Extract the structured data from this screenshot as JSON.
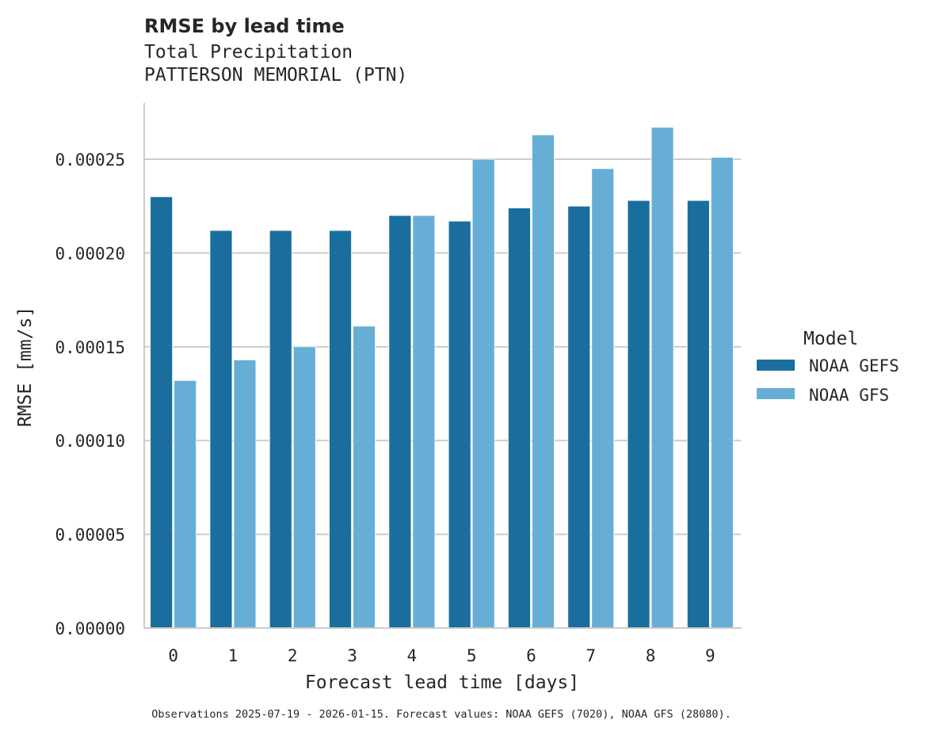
{
  "chart_data": {
    "type": "bar",
    "title": "RMSE by lead time",
    "subtitle_lines": [
      "Total Precipitation",
      "PATTERSON MEMORIAL (PTN)"
    ],
    "xlabel": "Forecast lead time [days]",
    "ylabel": "RMSE [mm/s]",
    "categories": [
      "0",
      "1",
      "2",
      "3",
      "4",
      "5",
      "6",
      "7",
      "8",
      "9"
    ],
    "ylim": [
      0,
      0.00028
    ],
    "yticks": [
      0,
      5e-05,
      0.0001,
      0.00015,
      0.0002,
      0.00025
    ],
    "ytick_labels": [
      "0.00000",
      "0.00005",
      "0.00010",
      "0.00015",
      "0.00020",
      "0.00025"
    ],
    "grid": "horizontal",
    "legend": {
      "title": "Model",
      "placement": "right"
    },
    "series": [
      {
        "name": "NOAA GEFS",
        "color": "#1a6e9e",
        "values": [
          0.00023,
          0.000212,
          0.000212,
          0.000212,
          0.00022,
          0.000217,
          0.000224,
          0.000225,
          0.000228,
          0.000228
        ]
      },
      {
        "name": "NOAA GFS",
        "color": "#67aed6",
        "values": [
          0.000132,
          0.000143,
          0.00015,
          0.000161,
          0.00022,
          0.00025,
          0.000263,
          0.000245,
          0.000267,
          0.000251
        ]
      }
    ],
    "footnote": "Observations 2025-07-19 - 2026-01-15. Forecast values: NOAA GEFS (7020), NOAA GFS (28080)."
  }
}
